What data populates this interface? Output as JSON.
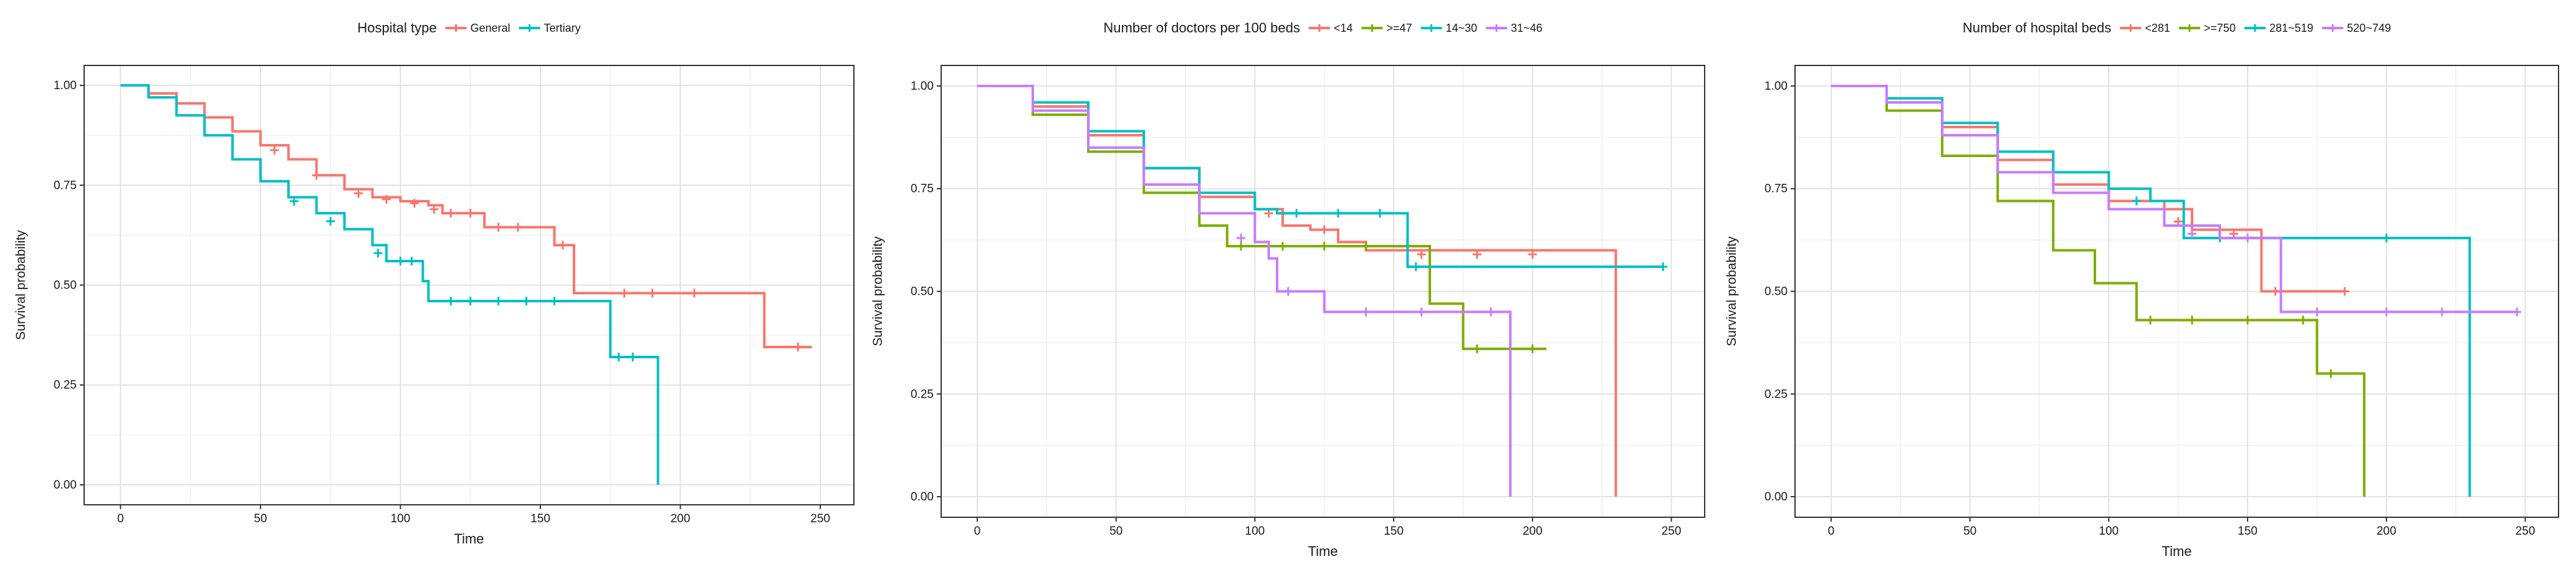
{
  "chart_data": [
    {
      "type": "line",
      "subtype": "kaplan-meier-step",
      "xlabel": "Time",
      "ylabel": "Survival probability",
      "xlim": [
        -13,
        262
      ],
      "ylim": [
        -0.05,
        1.05
      ],
      "xticks": [
        0,
        50,
        100,
        150,
        200,
        250
      ],
      "xtick_labels": [
        "0",
        "50",
        "100",
        "150",
        "200",
        "250"
      ],
      "yticks": [
        0,
        0.25,
        0.5,
        0.75,
        1
      ],
      "ytick_labels": [
        "0.00",
        "0.25",
        "0.50",
        "0.75",
        "1.00"
      ],
      "grid": true,
      "legend_position": "top",
      "legend_title": "Hospital type",
      "series": [
        {
          "name": "General",
          "color": "#F8766D",
          "steps": [
            [
              0,
              1.0
            ],
            [
              10,
              0.98
            ],
            [
              20,
              0.955
            ],
            [
              30,
              0.92
            ],
            [
              40,
              0.885
            ],
            [
              50,
              0.85
            ],
            [
              60,
              0.815
            ],
            [
              70,
              0.775
            ],
            [
              80,
              0.74
            ],
            [
              90,
              0.72
            ],
            [
              100,
              0.71
            ],
            [
              110,
              0.7
            ],
            [
              115,
              0.68
            ],
            [
              125,
              0.68
            ],
            [
              130,
              0.645
            ],
            [
              150,
              0.645
            ],
            [
              155,
              0.6
            ],
            [
              162,
              0.6
            ],
            [
              162,
              0.48
            ],
            [
              230,
              0.48
            ],
            [
              230,
              0.345
            ],
            [
              247,
              0.345
            ]
          ],
          "censored": [
            [
              55,
              0.838
            ],
            [
              70,
              0.775
            ],
            [
              85,
              0.73
            ],
            [
              95,
              0.715
            ],
            [
              105,
              0.705
            ],
            [
              112,
              0.69
            ],
            [
              118,
              0.68
            ],
            [
              125,
              0.68
            ],
            [
              135,
              0.645
            ],
            [
              142,
              0.645
            ],
            [
              158,
              0.6
            ],
            [
              180,
              0.48
            ],
            [
              190,
              0.48
            ],
            [
              205,
              0.48
            ],
            [
              242,
              0.345
            ]
          ]
        },
        {
          "name": "Tertiary",
          "color": "#00BFC4",
          "steps": [
            [
              0,
              1.0
            ],
            [
              10,
              0.97
            ],
            [
              20,
              0.925
            ],
            [
              30,
              0.875
            ],
            [
              40,
              0.815
            ],
            [
              50,
              0.76
            ],
            [
              60,
              0.72
            ],
            [
              70,
              0.68
            ],
            [
              80,
              0.64
            ],
            [
              90,
              0.6
            ],
            [
              95,
              0.56
            ],
            [
              108,
              0.56
            ],
            [
              108,
              0.51
            ],
            [
              110,
              0.51
            ],
            [
              110,
              0.46
            ],
            [
              175,
              0.46
            ],
            [
              175,
              0.32
            ],
            [
              192,
              0.32
            ],
            [
              192,
              0.0
            ]
          ],
          "censored": [
            [
              62,
              0.71
            ],
            [
              75,
              0.66
            ],
            [
              92,
              0.58
            ],
            [
              100,
              0.56
            ],
            [
              104,
              0.56
            ],
            [
              118,
              0.46
            ],
            [
              125,
              0.46
            ],
            [
              135,
              0.46
            ],
            [
              145,
              0.46
            ],
            [
              155,
              0.46
            ],
            [
              178,
              0.32
            ],
            [
              183,
              0.32
            ]
          ]
        }
      ]
    },
    {
      "type": "line",
      "subtype": "kaplan-meier-step",
      "xlabel": "Time",
      "ylabel": "Survival probability",
      "xlim": [
        -13,
        262
      ],
      "ylim": [
        -0.05,
        1.05
      ],
      "xticks": [
        0,
        50,
        100,
        150,
        200,
        250
      ],
      "xtick_labels": [
        "0",
        "50",
        "100",
        "150",
        "200",
        "250"
      ],
      "yticks": [
        0,
        0.25,
        0.5,
        0.75,
        1
      ],
      "ytick_labels": [
        "0.00",
        "0.25",
        "0.50",
        "0.75",
        "1.00"
      ],
      "grid": true,
      "legend_position": "top",
      "legend_title": "Number of doctors per 100 beds",
      "series": [
        {
          "name": "<14",
          "color": "#F8766D",
          "steps": [
            [
              0,
              1.0
            ],
            [
              20,
              0.95
            ],
            [
              40,
              0.88
            ],
            [
              60,
              0.8
            ],
            [
              80,
              0.73
            ],
            [
              100,
              0.7
            ],
            [
              110,
              0.69
            ],
            [
              110,
              0.66
            ],
            [
              120,
              0.65
            ],
            [
              130,
              0.62
            ],
            [
              140,
              0.6
            ],
            [
              230,
              0.59
            ],
            [
              230,
              0.0
            ]
          ],
          "censored": [
            [
              105,
              0.69
            ],
            [
              125,
              0.65
            ],
            [
              160,
              0.59
            ],
            [
              180,
              0.59
            ],
            [
              200,
              0.59
            ]
          ]
        },
        {
          "name": ">=47",
          "color": "#7CAE00",
          "steps": [
            [
              0,
              1.0
            ],
            [
              20,
              0.93
            ],
            [
              40,
              0.84
            ],
            [
              60,
              0.74
            ],
            [
              80,
              0.66
            ],
            [
              90,
              0.61
            ],
            [
              163,
              0.61
            ],
            [
              163,
              0.47
            ],
            [
              175,
              0.47
            ],
            [
              175,
              0.36
            ],
            [
              205,
              0.36
            ]
          ],
          "censored": [
            [
              95,
              0.61
            ],
            [
              110,
              0.61
            ],
            [
              125,
              0.61
            ],
            [
              140,
              0.61
            ],
            [
              155,
              0.61
            ],
            [
              180,
              0.36
            ],
            [
              200,
              0.36
            ]
          ]
        },
        {
          "name": "14~30",
          "color": "#00BFC4",
          "steps": [
            [
              0,
              1.0
            ],
            [
              20,
              0.96
            ],
            [
              40,
              0.89
            ],
            [
              60,
              0.8
            ],
            [
              80,
              0.74
            ],
            [
              100,
              0.7
            ],
            [
              108,
              0.69
            ],
            [
              155,
              0.69
            ],
            [
              155,
              0.56
            ],
            [
              247,
              0.56
            ]
          ],
          "censored": [
            [
              115,
              0.69
            ],
            [
              130,
              0.69
            ],
            [
              145,
              0.69
            ],
            [
              158,
              0.56
            ],
            [
              247,
              0.56
            ]
          ]
        },
        {
          "name": "31~46",
          "color": "#C77CFF",
          "steps": [
            [
              0,
              1.0
            ],
            [
              20,
              0.94
            ],
            [
              40,
              0.85
            ],
            [
              60,
              0.76
            ],
            [
              80,
              0.69
            ],
            [
              100,
              0.62
            ],
            [
              105,
              0.58
            ],
            [
              108,
              0.5
            ],
            [
              120,
              0.5
            ],
            [
              125,
              0.45
            ],
            [
              192,
              0.45
            ],
            [
              192,
              0.0
            ]
          ],
          "censored": [
            [
              95,
              0.63
            ],
            [
              112,
              0.5
            ],
            [
              140,
              0.45
            ],
            [
              160,
              0.45
            ],
            [
              185,
              0.45
            ]
          ]
        }
      ]
    },
    {
      "type": "line",
      "subtype": "kaplan-meier-step",
      "xlabel": "Time",
      "ylabel": "Survival probability",
      "xlim": [
        -13,
        262
      ],
      "ylim": [
        -0.05,
        1.05
      ],
      "xticks": [
        0,
        50,
        100,
        150,
        200,
        250
      ],
      "xtick_labels": [
        "0",
        "50",
        "100",
        "150",
        "200",
        "250"
      ],
      "yticks": [
        0,
        0.25,
        0.5,
        0.75,
        1
      ],
      "ytick_labels": [
        "0.00",
        "0.25",
        "0.50",
        "0.75",
        "1.00"
      ],
      "grid": true,
      "legend_position": "top",
      "legend_title": "Number of hospital beds",
      "series": [
        {
          "name": "<281",
          "color": "#F8766D",
          "steps": [
            [
              0,
              1.0
            ],
            [
              20,
              0.96
            ],
            [
              40,
              0.9
            ],
            [
              60,
              0.82
            ],
            [
              80,
              0.76
            ],
            [
              100,
              0.72
            ],
            [
              120,
              0.7
            ],
            [
              130,
              0.65
            ],
            [
              155,
              0.64
            ],
            [
              155,
              0.5
            ],
            [
              185,
              0.5
            ]
          ],
          "censored": [
            [
              125,
              0.67
            ],
            [
              145,
              0.64
            ],
            [
              160,
              0.5
            ],
            [
              185,
              0.5
            ]
          ]
        },
        {
          "name": ">=750",
          "color": "#7CAE00",
          "steps": [
            [
              0,
              1.0
            ],
            [
              20,
              0.94
            ],
            [
              40,
              0.83
            ],
            [
              60,
              0.72
            ],
            [
              80,
              0.6
            ],
            [
              95,
              0.52
            ],
            [
              110,
              0.43
            ],
            [
              175,
              0.43
            ],
            [
              175,
              0.3
            ],
            [
              192,
              0.3
            ],
            [
              192,
              0.0
            ]
          ],
          "censored": [
            [
              115,
              0.43
            ],
            [
              130,
              0.43
            ],
            [
              150,
              0.43
            ],
            [
              170,
              0.43
            ],
            [
              180,
              0.3
            ]
          ]
        },
        {
          "name": "281~519",
          "color": "#00BFC4",
          "steps": [
            [
              0,
              1.0
            ],
            [
              20,
              0.97
            ],
            [
              40,
              0.91
            ],
            [
              60,
              0.84
            ],
            [
              80,
              0.79
            ],
            [
              100,
              0.75
            ],
            [
              115,
              0.72
            ],
            [
              127,
              0.7
            ],
            [
              127,
              0.63
            ],
            [
              230,
              0.63
            ],
            [
              230,
              0.0
            ]
          ],
          "censored": [
            [
              110,
              0.72
            ],
            [
              140,
              0.63
            ],
            [
              200,
              0.63
            ]
          ]
        },
        {
          "name": "520~749",
          "color": "#C77CFF",
          "steps": [
            [
              0,
              1.0
            ],
            [
              20,
              0.96
            ],
            [
              40,
              0.88
            ],
            [
              60,
              0.79
            ],
            [
              80,
              0.74
            ],
            [
              100,
              0.7
            ],
            [
              120,
              0.66
            ],
            [
              140,
              0.63
            ],
            [
              162,
              0.63
            ],
            [
              162,
              0.45
            ],
            [
              247,
              0.45
            ]
          ],
          "censored": [
            [
              130,
              0.64
            ],
            [
              150,
              0.63
            ],
            [
              175,
              0.45
            ],
            [
              200,
              0.45
            ],
            [
              220,
              0.45
            ],
            [
              247,
              0.45
            ]
          ]
        }
      ]
    }
  ]
}
